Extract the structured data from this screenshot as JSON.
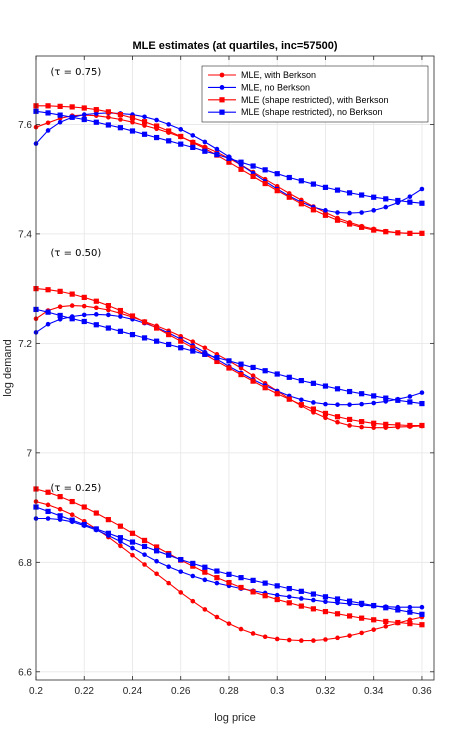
{
  "chart_data": {
    "type": "line",
    "title": "MLE estimates (at quartiles, inc=57500)",
    "xlabel": "log price",
    "ylabel": "log demand",
    "xlim": [
      0.2,
      0.365
    ],
    "ylim": [
      6.585,
      7.725
    ],
    "xticks": [
      0.2,
      0.22,
      0.24,
      0.26,
      0.28,
      0.3,
      0.32,
      0.34,
      0.36
    ],
    "xtick_labels": [
      "0.2",
      "0.22",
      "0.24",
      "0.26",
      "0.28",
      "0.3",
      "0.32",
      "0.34",
      "0.36"
    ],
    "yticks": [
      6.6,
      6.8,
      7.0,
      7.2,
      7.4,
      7.6
    ],
    "ytick_labels": [
      "6.6",
      "6.8",
      "7",
      "7.2",
      "7.4",
      "7.6"
    ],
    "grid": true,
    "legend_position": "top-right",
    "annotations": [
      {
        "text": "(τ = 0.75)",
        "x": 0.206,
        "y": 7.69
      },
      {
        "text": "(τ = 0.50)",
        "x": 0.206,
        "y": 7.36
      },
      {
        "text": "(τ = 0.25)",
        "x": 0.206,
        "y": 6.93
      }
    ],
    "legend": [
      {
        "name": "MLE, with Berkson",
        "color": "#ff0000",
        "marker": "circle"
      },
      {
        "name": "MLE, no Berkson",
        "color": "#0000ff",
        "marker": "circle"
      },
      {
        "name": "MLE (shape restricted), with Berkson",
        "color": "#ff0000",
        "marker": "square"
      },
      {
        "name": "MLE (shape restricted), no Berkson",
        "color": "#0000ff",
        "marker": "square"
      }
    ],
    "x": [
      0.2,
      0.205,
      0.21,
      0.215,
      0.22,
      0.225,
      0.23,
      0.235,
      0.24,
      0.245,
      0.25,
      0.255,
      0.26,
      0.265,
      0.27,
      0.275,
      0.28,
      0.285,
      0.29,
      0.295,
      0.3,
      0.305,
      0.31,
      0.315,
      0.32,
      0.325,
      0.33,
      0.335,
      0.34,
      0.345,
      0.35,
      0.355,
      0.36
    ],
    "series": [
      {
        "quartile": "0.75",
        "legend_index": 0,
        "color": "#ff0000",
        "marker": "circle",
        "values": [
          7.595,
          7.603,
          7.611,
          7.616,
          7.617,
          7.616,
          7.613,
          7.609,
          7.604,
          7.598,
          7.592,
          7.585,
          7.577,
          7.568,
          7.559,
          7.549,
          7.538,
          7.526,
          7.513,
          7.5,
          7.487,
          7.474,
          7.462,
          7.45,
          7.439,
          7.429,
          7.421,
          7.414,
          7.409,
          7.405,
          7.402,
          7.401,
          7.401
        ]
      },
      {
        "quartile": "0.75",
        "legend_index": 1,
        "color": "#0000ff",
        "marker": "circle",
        "values": [
          7.565,
          7.589,
          7.604,
          7.613,
          7.618,
          7.62,
          7.621,
          7.62,
          7.618,
          7.614,
          7.608,
          7.6,
          7.591,
          7.58,
          7.568,
          7.555,
          7.541,
          7.526,
          7.511,
          7.496,
          7.482,
          7.469,
          7.458,
          7.449,
          7.443,
          7.439,
          7.438,
          7.439,
          7.443,
          7.449,
          7.457,
          7.468,
          7.482
        ]
      },
      {
        "quartile": "0.75",
        "legend_index": 2,
        "color": "#ff0000",
        "marker": "square",
        "values": [
          7.634,
          7.634,
          7.633,
          7.632,
          7.63,
          7.627,
          7.623,
          7.618,
          7.612,
          7.605,
          7.597,
          7.588,
          7.578,
          7.567,
          7.556,
          7.544,
          7.531,
          7.518,
          7.505,
          7.492,
          7.479,
          7.467,
          7.455,
          7.444,
          7.434,
          7.425,
          7.418,
          7.412,
          7.407,
          7.404,
          7.402,
          7.401,
          7.401
        ]
      },
      {
        "quartile": "0.75",
        "legend_index": 3,
        "color": "#0000ff",
        "marker": "square",
        "values": [
          7.624,
          7.621,
          7.617,
          7.613,
          7.609,
          7.604,
          7.599,
          7.594,
          7.588,
          7.582,
          7.576,
          7.57,
          7.564,
          7.558,
          7.551,
          7.545,
          7.538,
          7.531,
          7.524,
          7.517,
          7.51,
          7.503,
          7.497,
          7.491,
          7.485,
          7.48,
          7.475,
          7.471,
          7.467,
          7.464,
          7.461,
          7.458,
          7.456
        ]
      },
      {
        "quartile": "0.50",
        "legend_index": 0,
        "color": "#ff0000",
        "marker": "circle",
        "values": [
          7.245,
          7.26,
          7.267,
          7.269,
          7.268,
          7.265,
          7.261,
          7.255,
          7.248,
          7.24,
          7.232,
          7.223,
          7.213,
          7.203,
          7.192,
          7.18,
          7.168,
          7.155,
          7.141,
          7.127,
          7.113,
          7.099,
          7.086,
          7.074,
          7.064,
          7.056,
          7.05,
          7.047,
          7.046,
          7.046,
          7.047,
          7.048,
          7.049
        ]
      },
      {
        "quartile": "0.50",
        "legend_index": 1,
        "color": "#0000ff",
        "marker": "circle",
        "values": [
          7.22,
          7.235,
          7.244,
          7.249,
          7.252,
          7.253,
          7.252,
          7.249,
          7.244,
          7.237,
          7.229,
          7.219,
          7.208,
          7.196,
          7.184,
          7.171,
          7.158,
          7.146,
          7.134,
          7.123,
          7.113,
          7.104,
          7.097,
          7.092,
          7.089,
          7.088,
          7.088,
          7.089,
          7.091,
          7.094,
          7.098,
          7.103,
          7.11
        ]
      },
      {
        "quartile": "0.50",
        "legend_index": 2,
        "color": "#ff0000",
        "marker": "square",
        "values": [
          7.3,
          7.298,
          7.295,
          7.29,
          7.284,
          7.277,
          7.269,
          7.26,
          7.25,
          7.239,
          7.228,
          7.216,
          7.204,
          7.192,
          7.18,
          7.167,
          7.155,
          7.143,
          7.131,
          7.119,
          7.108,
          7.098,
          7.088,
          7.08,
          7.072,
          7.066,
          7.061,
          7.057,
          7.054,
          7.052,
          7.051,
          7.05,
          7.05
        ]
      },
      {
        "quartile": "0.50",
        "legend_index": 3,
        "color": "#0000ff",
        "marker": "square",
        "values": [
          7.262,
          7.257,
          7.251,
          7.245,
          7.24,
          7.234,
          7.228,
          7.222,
          7.216,
          7.21,
          7.204,
          7.198,
          7.192,
          7.186,
          7.18,
          7.174,
          7.168,
          7.162,
          7.156,
          7.15,
          7.144,
          7.138,
          7.132,
          7.127,
          7.122,
          7.117,
          7.112,
          7.108,
          7.104,
          7.1,
          7.096,
          7.093,
          7.09
        ]
      },
      {
        "quartile": "0.25",
        "legend_index": 0,
        "color": "#ff0000",
        "marker": "circle",
        "values": [
          6.911,
          6.905,
          6.897,
          6.887,
          6.875,
          6.861,
          6.846,
          6.83,
          6.813,
          6.796,
          6.779,
          6.762,
          6.745,
          6.729,
          6.714,
          6.7,
          6.688,
          6.678,
          6.67,
          6.664,
          6.66,
          6.658,
          6.657,
          6.657,
          6.659,
          6.662,
          6.666,
          6.671,
          6.677,
          6.683,
          6.689,
          6.695,
          6.7
        ]
      },
      {
        "quartile": "0.25",
        "legend_index": 1,
        "color": "#0000ff",
        "marker": "circle",
        "values": [
          6.88,
          6.88,
          6.878,
          6.874,
          6.867,
          6.859,
          6.849,
          6.838,
          6.826,
          6.814,
          6.802,
          6.792,
          6.783,
          6.775,
          6.768,
          6.762,
          6.757,
          6.752,
          6.748,
          6.744,
          6.74,
          6.737,
          6.734,
          6.731,
          6.728,
          6.726,
          6.724,
          6.722,
          6.72,
          6.719,
          6.718,
          6.718,
          6.718
        ]
      },
      {
        "quartile": "0.25",
        "legend_index": 2,
        "color": "#ff0000",
        "marker": "square",
        "values": [
          6.934,
          6.928,
          6.92,
          6.911,
          6.901,
          6.89,
          6.878,
          6.866,
          6.853,
          6.84,
          6.828,
          6.816,
          6.804,
          6.793,
          6.782,
          6.772,
          6.763,
          6.754,
          6.746,
          6.739,
          6.732,
          6.726,
          6.72,
          6.715,
          6.71,
          6.706,
          6.702,
          6.698,
          6.695,
          6.692,
          6.69,
          6.688,
          6.686
        ]
      },
      {
        "quartile": "0.25",
        "legend_index": 3,
        "color": "#0000ff",
        "marker": "square",
        "values": [
          6.901,
          6.893,
          6.885,
          6.877,
          6.869,
          6.861,
          6.853,
          6.845,
          6.837,
          6.829,
          6.821,
          6.813,
          6.805,
          6.798,
          6.791,
          6.784,
          6.778,
          6.772,
          6.767,
          6.762,
          6.757,
          6.752,
          6.747,
          6.742,
          6.737,
          6.733,
          6.729,
          6.725,
          6.721,
          6.717,
          6.713,
          6.709,
          6.705
        ]
      }
    ]
  }
}
